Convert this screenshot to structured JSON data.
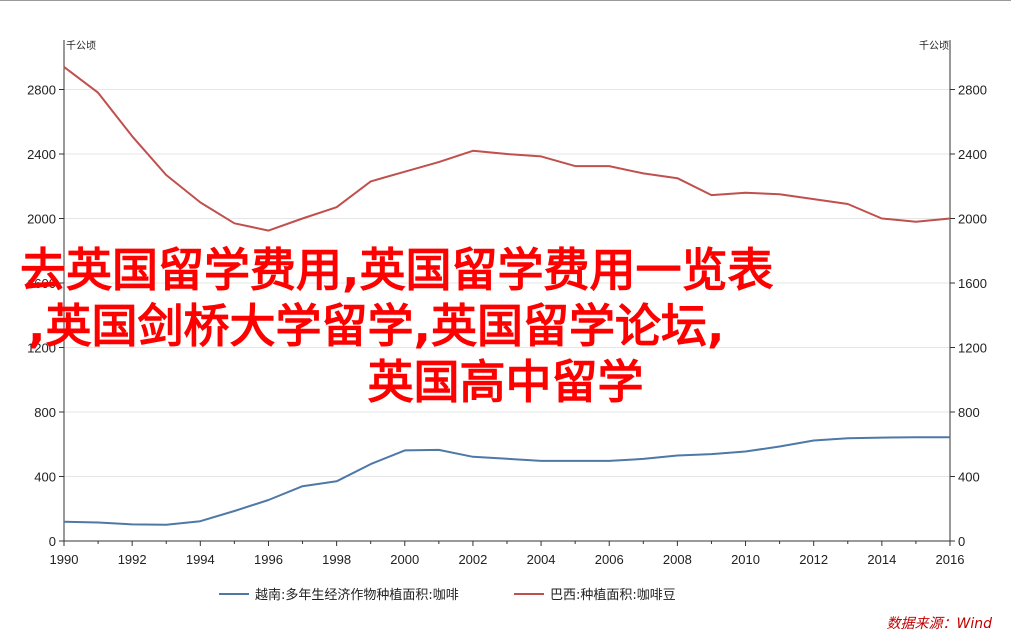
{
  "chart_data": {
    "type": "line",
    "title": "",
    "xlabel": "",
    "ylabel_left": "千公顷",
    "ylabel_right": "千公顷",
    "xlim": [
      1990,
      2016
    ],
    "ylim": [
      0,
      3000
    ],
    "x_ticks": [
      "1990",
      "1992",
      "1994",
      "1996",
      "1998",
      "2000",
      "2002",
      "2004",
      "2006",
      "2008",
      "2010",
      "2012",
      "2014",
      "2016"
    ],
    "y_ticks": [
      "0",
      "400",
      "800",
      "1200",
      "1600",
      "2000",
      "2400",
      "2800"
    ],
    "grid": "horizontal",
    "legend_position": "bottom",
    "series": [
      {
        "name": "越南:多年生经济作物种植面积:咖啡",
        "color": "#4e79a7",
        "x": [
          1990,
          1991,
          1992,
          1993,
          1994,
          1995,
          1996,
          1997,
          1998,
          1999,
          2000,
          2001,
          2002,
          2003,
          2004,
          2005,
          2006,
          2007,
          2008,
          2009,
          2010,
          2011,
          2012,
          2013,
          2014,
          2015,
          2016
        ],
        "values": [
          119,
          115,
          103,
          101,
          123,
          186,
          254,
          340,
          370,
          477,
          562,
          565,
          522,
          510,
          497,
          497,
          497,
          509,
          530,
          539,
          555,
          586,
          623,
          637,
          641,
          643,
          643
        ]
      },
      {
        "name": "巴西:种植面积:咖啡豆",
        "color": "#c0504d",
        "x": [
          1990,
          1991,
          1992,
          1993,
          1994,
          1995,
          1996,
          1997,
          1998,
          1999,
          2000,
          2001,
          2002,
          2003,
          2004,
          2005,
          2006,
          2007,
          2008,
          2009,
          2010,
          2011,
          2012,
          2013,
          2014,
          2015,
          2016
        ],
        "values": [
          2940,
          2780,
          2510,
          2270,
          2100,
          1970,
          1925,
          2000,
          2070,
          2230,
          2290,
          2350,
          2420,
          2400,
          2385,
          2325,
          2325,
          2280,
          2250,
          2145,
          2160,
          2150,
          2120,
          2090,
          2000,
          1980,
          2000
        ]
      }
    ]
  },
  "overlay": {
    "line1": "去英国留学费用,英国留学费用一览表",
    "line2": ",英国剑桥大学留学,英国留学论坛,",
    "line3": "英国高中留学"
  },
  "source": "数据来源：Wind"
}
